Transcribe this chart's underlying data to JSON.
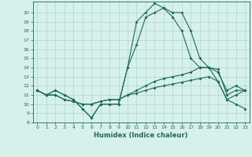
{
  "xlabel": "Humidex (Indice chaleur)",
  "x_values": [
    0,
    1,
    2,
    3,
    4,
    5,
    6,
    7,
    8,
    9,
    10,
    11,
    12,
    13,
    14,
    15,
    16,
    17,
    18,
    19,
    20,
    21,
    22,
    23
  ],
  "line1": [
    11.5,
    11.0,
    11.5,
    11.0,
    10.5,
    9.5,
    8.5,
    10.0,
    10.0,
    10.0,
    14.0,
    19.0,
    20.0,
    21.0,
    20.5,
    20.0,
    20.0,
    18.0,
    15.0,
    14.0,
    13.8,
    11.0,
    11.5,
    11.5
  ],
  "line2": [
    11.5,
    11.0,
    11.5,
    11.0,
    10.5,
    9.5,
    8.5,
    10.0,
    10.0,
    10.0,
    14.0,
    16.5,
    19.5,
    20.0,
    20.5,
    19.5,
    18.0,
    15.0,
    14.0,
    14.0,
    12.5,
    10.5,
    10.0,
    9.5
  ],
  "line3": [
    11.5,
    11.0,
    11.0,
    10.5,
    10.3,
    10.0,
    10.0,
    10.3,
    10.5,
    10.5,
    11.0,
    11.5,
    12.0,
    12.5,
    12.8,
    13.0,
    13.2,
    13.5,
    14.0,
    14.0,
    13.5,
    11.5,
    12.0,
    11.5
  ],
  "line4": [
    11.5,
    11.0,
    11.0,
    10.5,
    10.3,
    10.0,
    10.0,
    10.3,
    10.5,
    10.5,
    11.0,
    11.2,
    11.5,
    11.8,
    12.0,
    12.2,
    12.4,
    12.6,
    12.8,
    13.0,
    12.5,
    10.5,
    11.0,
    11.5
  ],
  "line_color": "#1a6b5a",
  "bg_color": "#d8f0ec",
  "grid_color": "#aad8d0",
  "ylim": [
    8,
    21
  ],
  "xlim": [
    -0.5,
    23.5
  ],
  "yticks": [
    8,
    9,
    10,
    11,
    12,
    13,
    14,
    15,
    16,
    17,
    18,
    19,
    20
  ],
  "xticks": [
    0,
    1,
    2,
    3,
    4,
    5,
    6,
    7,
    8,
    9,
    10,
    11,
    12,
    13,
    14,
    15,
    16,
    17,
    18,
    19,
    20,
    21,
    22,
    23
  ]
}
